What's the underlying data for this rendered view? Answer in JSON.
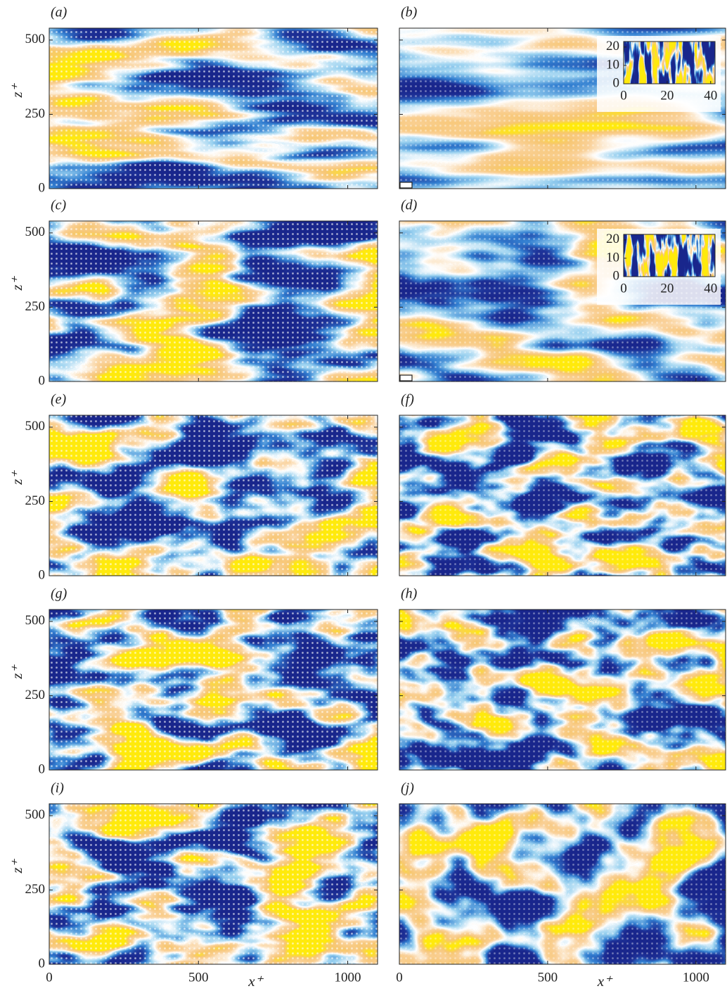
{
  "chart_data": [
    {
      "type": "field",
      "label": "(a)",
      "ylabel": "z⁺",
      "xlim": [
        0,
        1100
      ],
      "ylim": [
        0,
        540
      ],
      "xticks": [
        0,
        500,
        1000
      ],
      "yticks": [
        0,
        250,
        500
      ]
    },
    {
      "type": "field",
      "label": "(b)",
      "xlim": [
        0,
        1100
      ],
      "ylim": [
        0,
        540
      ],
      "xticks": [
        0,
        500,
        1000
      ],
      "yticks": [
        0,
        250,
        500
      ],
      "inset": {
        "xlim": [
          0,
          42
        ],
        "ylim": [
          0,
          23
        ],
        "xticks": [
          0,
          20,
          40
        ],
        "yticks": [
          0,
          10,
          20
        ]
      }
    },
    {
      "type": "field",
      "label": "(c)",
      "ylabel": "z⁺",
      "xlim": [
        0,
        1100
      ],
      "ylim": [
        0,
        540
      ],
      "xticks": [
        0,
        500,
        1000
      ],
      "yticks": [
        0,
        250,
        500
      ]
    },
    {
      "type": "field",
      "label": "(d)",
      "xlim": [
        0,
        1100
      ],
      "ylim": [
        0,
        540
      ],
      "xticks": [
        0,
        500,
        1000
      ],
      "yticks": [
        0,
        250,
        500
      ],
      "inset": {
        "xlim": [
          0,
          42
        ],
        "ylim": [
          0,
          23
        ],
        "xticks": [
          0,
          20,
          40
        ],
        "yticks": [
          0,
          10,
          20
        ]
      }
    },
    {
      "type": "field",
      "label": "(e)",
      "ylabel": "z⁺",
      "xlim": [
        0,
        1100
      ],
      "ylim": [
        0,
        540
      ],
      "xticks": [
        0,
        500,
        1000
      ],
      "yticks": [
        0,
        250,
        500
      ]
    },
    {
      "type": "field",
      "label": "(f)",
      "xlim": [
        0,
        1100
      ],
      "ylim": [
        0,
        540
      ],
      "xticks": [
        0,
        500,
        1000
      ],
      "yticks": [
        0,
        250,
        500
      ]
    },
    {
      "type": "field",
      "label": "(g)",
      "ylabel": "z⁺",
      "xlim": [
        0,
        1100
      ],
      "ylim": [
        0,
        540
      ],
      "xticks": [
        0,
        500,
        1000
      ],
      "yticks": [
        0,
        250,
        500
      ]
    },
    {
      "type": "field",
      "label": "(h)",
      "xlim": [
        0,
        1100
      ],
      "ylim": [
        0,
        540
      ],
      "xticks": [
        0,
        500,
        1000
      ],
      "yticks": [
        0,
        250,
        500
      ]
    },
    {
      "type": "field",
      "label": "(i)",
      "ylabel": "z⁺",
      "xlabel": "x⁺",
      "xlim": [
        0,
        1100
      ],
      "ylim": [
        0,
        540
      ],
      "xticks": [
        0,
        500,
        1000
      ],
      "yticks": [
        0,
        250,
        500
      ]
    },
    {
      "type": "field",
      "label": "(j)",
      "xlabel": "x⁺",
      "xlim": [
        0,
        1100
      ],
      "ylim": [
        0,
        540
      ],
      "xticks": [
        0,
        500,
        1000
      ],
      "yticks": [
        0,
        250,
        500
      ]
    }
  ]
}
